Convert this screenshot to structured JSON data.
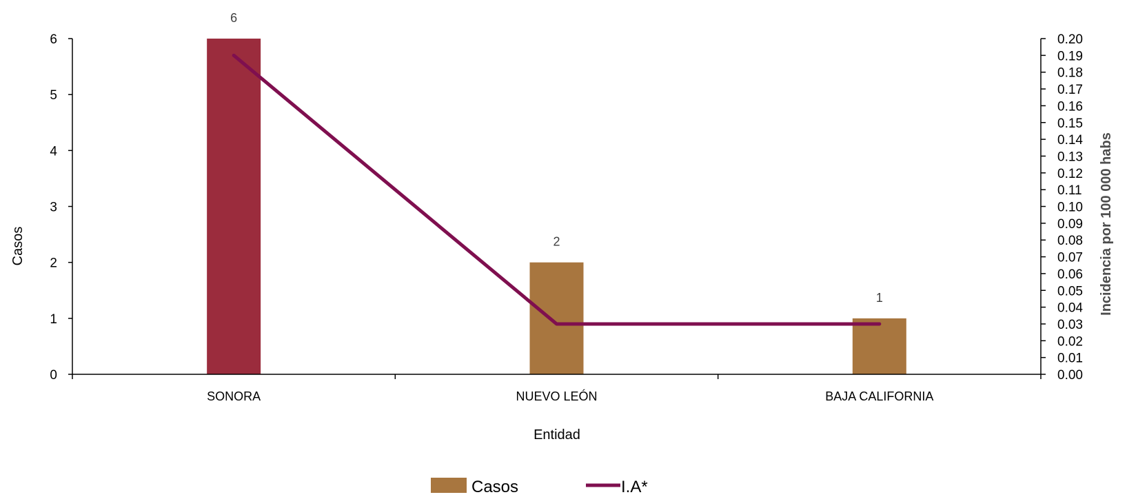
{
  "chart_data": {
    "type": "bar",
    "categories": [
      "SONORA",
      "NUEVO LEÓN",
      "BAJA CALIFORNIA"
    ],
    "series": [
      {
        "name": "Casos",
        "type": "bar",
        "axis": "left",
        "values": [
          6,
          2,
          1
        ],
        "data_labels": [
          "6",
          "2",
          "1"
        ],
        "point_colors": [
          "#9b2c3d",
          "#a8763f",
          "#a8763f"
        ]
      },
      {
        "name": "I.A*",
        "type": "line",
        "axis": "right",
        "values": [
          0.19,
          0.03,
          0.03
        ],
        "color": "#7f0f4f"
      }
    ],
    "xlabel": "Entidad",
    "ylabel": "Casos",
    "y2label": "Incidencia por 100 000 habs",
    "ylim": [
      0,
      6
    ],
    "y2lim": [
      0,
      0.2
    ],
    "yticks": [
      "0",
      "1",
      "2",
      "3",
      "4",
      "5",
      "6"
    ],
    "y2ticks": [
      "0.00",
      "0.01",
      "0.02",
      "0.03",
      "0.04",
      "0.05",
      "0.06",
      "0.07",
      "0.08",
      "0.09",
      "0.10",
      "0.11",
      "0.12",
      "0.13",
      "0.14",
      "0.15",
      "0.16",
      "0.17",
      "0.18",
      "0.19",
      "0.20"
    ],
    "grid": false,
    "legend": {
      "position": "bottom",
      "items": [
        {
          "label": "Casos",
          "symbol": "square",
          "color": "#a8763f"
        },
        {
          "label": "I.A*",
          "symbol": "line",
          "color": "#7f0f4f"
        }
      ]
    }
  }
}
